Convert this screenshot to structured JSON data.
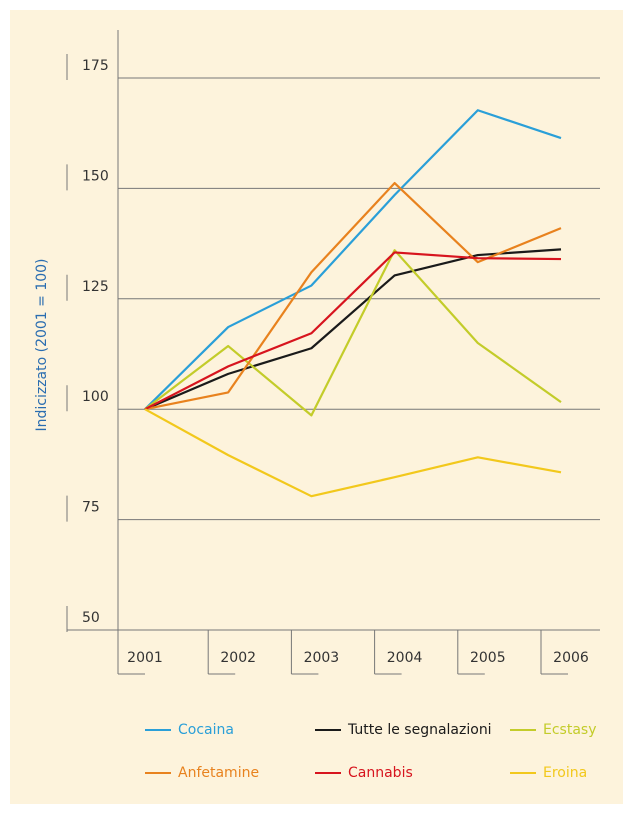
{
  "chart_data": {
    "type": "line",
    "y_label": "Indicizzato (2001 = 100)",
    "categories": [
      "2001",
      "2002",
      "2003",
      "2004",
      "2005",
      "2006"
    ],
    "series": [
      {
        "name": "Cocaina",
        "color": "#2a9fd8",
        "values": [
          100,
          118.6,
          128,
          148.5,
          167.7,
          161.4
        ]
      },
      {
        "name": "Tutte le segnalazioni",
        "color": "#1a1a1a",
        "values": [
          100,
          108,
          113.8,
          130.3,
          134.9,
          136.2
        ]
      },
      {
        "name": "Ecstasy",
        "color": "#c3cc2a",
        "values": [
          100,
          114.3,
          98.6,
          136,
          115,
          101.6
        ]
      },
      {
        "name": "Anfetamine",
        "color": "#e8821e",
        "values": [
          100,
          103.8,
          131,
          151.2,
          133.3,
          141
        ]
      },
      {
        "name": "Cannabis",
        "color": "#d7141e",
        "values": [
          100,
          109.7,
          117.2,
          135.5,
          134.2,
          134
        ]
      },
      {
        "name": "Eroina",
        "color": "#f2c81c",
        "values": [
          100,
          89.6,
          80.3,
          84.6,
          89.1,
          85.7
        ]
      }
    ],
    "ylim": [
      50,
      185
    ],
    "yticks": [
      50,
      75,
      100,
      125,
      150,
      175
    ],
    "grid": true
  }
}
